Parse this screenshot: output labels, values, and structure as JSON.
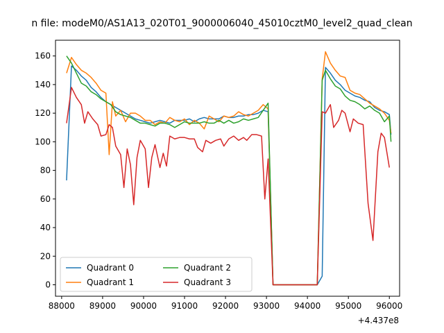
{
  "chart_data": {
    "type": "line",
    "title": "n file: modeM0/AS1A13_020T01_9000006040_45010cztM0_level2_quad_clean",
    "x_offset_label": "+4.437e8",
    "xlabel": "",
    "ylabel": "",
    "xlim": [
      87850,
      96250
    ],
    "ylim": [
      -8,
      171
    ],
    "x_ticks": [
      88000,
      89000,
      90000,
      91000,
      92000,
      93000,
      94000,
      95000,
      96000
    ],
    "x_tick_labels": [
      "88000",
      "89000",
      "90000",
      "91000",
      "92000",
      "93000",
      "94000",
      "95000",
      "96000"
    ],
    "y_ticks": [
      0,
      20,
      40,
      60,
      80,
      100,
      120,
      140,
      160
    ],
    "y_tick_labels": [
      "0",
      "20",
      "40",
      "60",
      "80",
      "100",
      "120",
      "140",
      "160"
    ],
    "legend_placement": "lower-left",
    "grid": false,
    "series": [
      {
        "name": "Quadrant 0",
        "color": "#1f77b4",
        "points": [
          [
            88120,
            73
          ],
          [
            88240,
            153
          ],
          [
            88360,
            150
          ],
          [
            88480,
            146
          ],
          [
            88600,
            143
          ],
          [
            88720,
            138
          ],
          [
            88840,
            135
          ],
          [
            88960,
            131
          ],
          [
            89080,
            128
          ],
          [
            89200,
            126
          ],
          [
            89320,
            124
          ],
          [
            89440,
            122
          ],
          [
            89560,
            120
          ],
          [
            89680,
            118
          ],
          [
            89800,
            116
          ],
          [
            89920,
            115
          ],
          [
            90040,
            114
          ],
          [
            90160,
            113
          ],
          [
            90280,
            114
          ],
          [
            90400,
            115
          ],
          [
            90520,
            114
          ],
          [
            90640,
            113
          ],
          [
            90760,
            115
          ],
          [
            90880,
            115
          ],
          [
            91000,
            115
          ],
          [
            91120,
            116
          ],
          [
            91240,
            114
          ],
          [
            91360,
            116
          ],
          [
            91480,
            117
          ],
          [
            91600,
            116
          ],
          [
            91720,
            116
          ],
          [
            91840,
            116
          ],
          [
            91960,
            118
          ],
          [
            92080,
            117
          ],
          [
            92200,
            117
          ],
          [
            92320,
            118
          ],
          [
            92440,
            118
          ],
          [
            92560,
            119
          ],
          [
            92680,
            119
          ],
          [
            92800,
            120
          ],
          [
            92920,
            122
          ],
          [
            93040,
            121
          ],
          [
            93160,
            0
          ],
          [
            93280,
            0
          ],
          [
            93400,
            0
          ],
          [
            93520,
            0
          ],
          [
            93640,
            0
          ],
          [
            93760,
            0
          ],
          [
            93880,
            0
          ],
          [
            94000,
            0
          ],
          [
            94120,
            0
          ],
          [
            94240,
            0
          ],
          [
            94360,
            6
          ],
          [
            94440,
            152
          ],
          [
            94560,
            148
          ],
          [
            94680,
            143
          ],
          [
            94800,
            140
          ],
          [
            94920,
            136
          ],
          [
            95040,
            134
          ],
          [
            95160,
            132
          ],
          [
            95280,
            131
          ],
          [
            95400,
            129
          ],
          [
            95520,
            128
          ],
          [
            95640,
            124
          ],
          [
            95760,
            122
          ],
          [
            95880,
            121
          ],
          [
            96000,
            119
          ],
          [
            96040,
            105
          ]
        ]
      },
      {
        "name": "Quadrant 1",
        "color": "#ff7f0e",
        "points": [
          [
            88120,
            148
          ],
          [
            88240,
            159
          ],
          [
            88360,
            154
          ],
          [
            88480,
            150
          ],
          [
            88600,
            148
          ],
          [
            88720,
            145
          ],
          [
            88840,
            141
          ],
          [
            88960,
            136
          ],
          [
            89080,
            134
          ],
          [
            89160,
            91
          ],
          [
            89240,
            128
          ],
          [
            89320,
            118
          ],
          [
            89440,
            122
          ],
          [
            89560,
            114
          ],
          [
            89680,
            120
          ],
          [
            89800,
            120
          ],
          [
            89920,
            118
          ],
          [
            90040,
            115
          ],
          [
            90160,
            115
          ],
          [
            90280,
            112
          ],
          [
            90400,
            114
          ],
          [
            90520,
            113
          ],
          [
            90640,
            117
          ],
          [
            90760,
            115
          ],
          [
            90880,
            114
          ],
          [
            91000,
            116
          ],
          [
            91120,
            112
          ],
          [
            91240,
            115
          ],
          [
            91360,
            113
          ],
          [
            91480,
            109
          ],
          [
            91600,
            118
          ],
          [
            91720,
            116
          ],
          [
            91840,
            114
          ],
          [
            91960,
            118
          ],
          [
            92080,
            117
          ],
          [
            92200,
            118
          ],
          [
            92320,
            121
          ],
          [
            92440,
            119
          ],
          [
            92560,
            118
          ],
          [
            92680,
            120
          ],
          [
            92800,
            122
          ],
          [
            92920,
            126
          ],
          [
            93040,
            123
          ],
          [
            93160,
            0
          ],
          [
            93280,
            0
          ],
          [
            93400,
            0
          ],
          [
            93520,
            0
          ],
          [
            93640,
            0
          ],
          [
            93760,
            0
          ],
          [
            93880,
            0
          ],
          [
            94000,
            0
          ],
          [
            94120,
            0
          ],
          [
            94240,
            0
          ],
          [
            94360,
            144
          ],
          [
            94440,
            163
          ],
          [
            94560,
            155
          ],
          [
            94680,
            150
          ],
          [
            94800,
            146
          ],
          [
            94920,
            145
          ],
          [
            95040,
            136
          ],
          [
            95160,
            134
          ],
          [
            95280,
            133
          ],
          [
            95400,
            130
          ],
          [
            95520,
            127
          ],
          [
            95640,
            125
          ],
          [
            95760,
            123
          ],
          [
            95880,
            120
          ],
          [
            96000,
            115
          ],
          [
            96040,
            106
          ]
        ]
      },
      {
        "name": "Quadrant 2",
        "color": "#2ca02c",
        "points": [
          [
            88120,
            160
          ],
          [
            88240,
            155
          ],
          [
            88360,
            148
          ],
          [
            88480,
            141
          ],
          [
            88600,
            139
          ],
          [
            88720,
            135
          ],
          [
            88840,
            133
          ],
          [
            88960,
            130
          ],
          [
            89080,
            128
          ],
          [
            89200,
            126
          ],
          [
            89320,
            121
          ],
          [
            89440,
            119
          ],
          [
            89560,
            118
          ],
          [
            89680,
            117
          ],
          [
            89800,
            115
          ],
          [
            89920,
            113
          ],
          [
            90040,
            113
          ],
          [
            90160,
            112
          ],
          [
            90280,
            111
          ],
          [
            90400,
            113
          ],
          [
            90520,
            113
          ],
          [
            90640,
            112
          ],
          [
            90760,
            110
          ],
          [
            90880,
            112
          ],
          [
            91000,
            114
          ],
          [
            91120,
            113
          ],
          [
            91240,
            113
          ],
          [
            91360,
            113
          ],
          [
            91480,
            114
          ],
          [
            91600,
            113
          ],
          [
            91720,
            113
          ],
          [
            91840,
            115
          ],
          [
            91960,
            113
          ],
          [
            92080,
            115
          ],
          [
            92200,
            113
          ],
          [
            92320,
            114
          ],
          [
            92440,
            116
          ],
          [
            92560,
            115
          ],
          [
            92680,
            116
          ],
          [
            92800,
            117
          ],
          [
            92920,
            122
          ],
          [
            93040,
            127
          ],
          [
            93160,
            0
          ],
          [
            93280,
            0
          ],
          [
            93400,
            0
          ],
          [
            93520,
            0
          ],
          [
            93640,
            0
          ],
          [
            93760,
            0
          ],
          [
            93880,
            0
          ],
          [
            94000,
            0
          ],
          [
            94120,
            0
          ],
          [
            94240,
            0
          ],
          [
            94360,
            143
          ],
          [
            94440,
            150
          ],
          [
            94560,
            144
          ],
          [
            94680,
            139
          ],
          [
            94800,
            137
          ],
          [
            94920,
            132
          ],
          [
            95040,
            129
          ],
          [
            95160,
            128
          ],
          [
            95280,
            126
          ],
          [
            95400,
            123
          ],
          [
            95520,
            125
          ],
          [
            95640,
            122
          ],
          [
            95760,
            120
          ],
          [
            95880,
            114
          ],
          [
            96000,
            118
          ],
          [
            96040,
            100
          ]
        ]
      },
      {
        "name": "Quadrant 3",
        "color": "#d62728",
        "points": [
          [
            88120,
            113
          ],
          [
            88240,
            138
          ],
          [
            88360,
            131
          ],
          [
            88480,
            126
          ],
          [
            88560,
            113
          ],
          [
            88640,
            121
          ],
          [
            88760,
            116
          ],
          [
            88880,
            112
          ],
          [
            88960,
            104
          ],
          [
            89080,
            105
          ],
          [
            89160,
            112
          ],
          [
            89240,
            110
          ],
          [
            89320,
            97
          ],
          [
            89440,
            91
          ],
          [
            89520,
            68
          ],
          [
            89600,
            95
          ],
          [
            89680,
            84
          ],
          [
            89760,
            56
          ],
          [
            89840,
            89
          ],
          [
            89920,
            101
          ],
          [
            90040,
            95
          ],
          [
            90120,
            68
          ],
          [
            90200,
            89
          ],
          [
            90280,
            98
          ],
          [
            90400,
            82
          ],
          [
            90480,
            92
          ],
          [
            90560,
            83
          ],
          [
            90640,
            104
          ],
          [
            90760,
            102
          ],
          [
            90880,
            103
          ],
          [
            91000,
            103
          ],
          [
            91120,
            102
          ],
          [
            91240,
            102
          ],
          [
            91320,
            96
          ],
          [
            91440,
            93
          ],
          [
            91520,
            101
          ],
          [
            91640,
            99
          ],
          [
            91760,
            101
          ],
          [
            91880,
            102
          ],
          [
            91960,
            97
          ],
          [
            92080,
            102
          ],
          [
            92200,
            104
          ],
          [
            92320,
            101
          ],
          [
            92440,
            103
          ],
          [
            92520,
            101
          ],
          [
            92640,
            105
          ],
          [
            92760,
            105
          ],
          [
            92880,
            104
          ],
          [
            92960,
            60
          ],
          [
            93040,
            88
          ],
          [
            93160,
            0
          ],
          [
            93280,
            0
          ],
          [
            93400,
            0
          ],
          [
            93520,
            0
          ],
          [
            93640,
            0
          ],
          [
            93760,
            0
          ],
          [
            93880,
            0
          ],
          [
            94000,
            0
          ],
          [
            94120,
            0
          ],
          [
            94240,
            0
          ],
          [
            94360,
            121
          ],
          [
            94440,
            120
          ],
          [
            94560,
            126
          ],
          [
            94640,
            110
          ],
          [
            94760,
            115
          ],
          [
            94840,
            122
          ],
          [
            94920,
            120
          ],
          [
            95040,
            107
          ],
          [
            95120,
            116
          ],
          [
            95240,
            113
          ],
          [
            95360,
            112
          ],
          [
            95480,
            57
          ],
          [
            95600,
            31
          ],
          [
            95720,
            93
          ],
          [
            95800,
            106
          ],
          [
            95880,
            103
          ],
          [
            96000,
            82
          ]
        ]
      }
    ]
  }
}
